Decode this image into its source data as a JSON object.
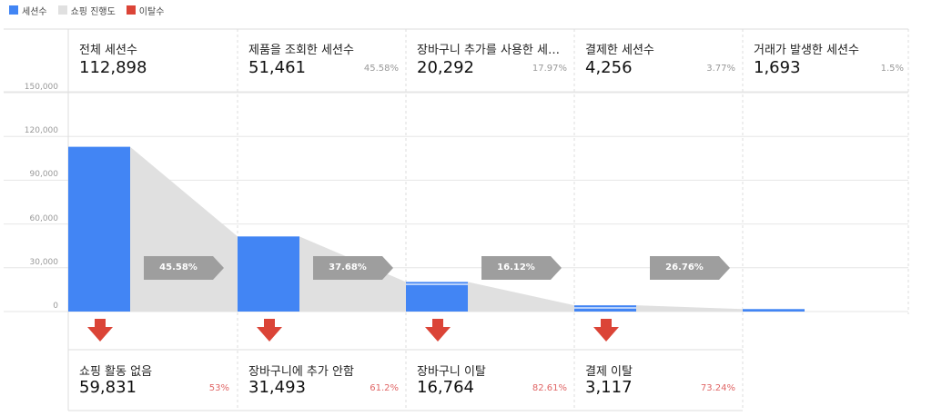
{
  "legend": [
    {
      "label": "세션수",
      "color": "#4285f4"
    },
    {
      "label": "쇼핑 진행도",
      "color": "#e0e0e0"
    },
    {
      "label": "이탈수",
      "color": "#db4437"
    }
  ],
  "chart_data": {
    "type": "bar",
    "ylim": [
      0,
      150000
    ],
    "yticks": [
      "150,000",
      "120,000",
      "90,000",
      "60,000",
      "30,000",
      "0"
    ],
    "stages": [
      {
        "label": "전체 세션수",
        "value": 112898,
        "value_text": "112,898",
        "pct": ""
      },
      {
        "label": "제품을 조회한 세션수",
        "value": 51461,
        "value_text": "51,461",
        "pct": "45.58%"
      },
      {
        "label": "장바구니 추가를 사용한 세…",
        "value": 20292,
        "value_text": "20,292",
        "pct": "17.97%"
      },
      {
        "label": "결제한 세션수",
        "value": 4256,
        "value_text": "4,256",
        "pct": "3.77%"
      },
      {
        "label": "거래가 발생한 세션수",
        "value": 1693,
        "value_text": "1,693",
        "pct": "1.5%"
      }
    ],
    "conversions": [
      "45.58%",
      "37.68%",
      "16.12%",
      "26.76%"
    ],
    "abandonments": [
      {
        "label": "쇼핑 활동 없음",
        "value_text": "59,831",
        "pct": "53%"
      },
      {
        "label": "장바구니에 추가 안함",
        "value_text": "31,493",
        "pct": "61.2%"
      },
      {
        "label": "장바구니 이탈",
        "value_text": "16,764",
        "pct": "82.61%"
      },
      {
        "label": "결제 이탈",
        "value_text": "3,117",
        "pct": "73.24%"
      }
    ]
  }
}
